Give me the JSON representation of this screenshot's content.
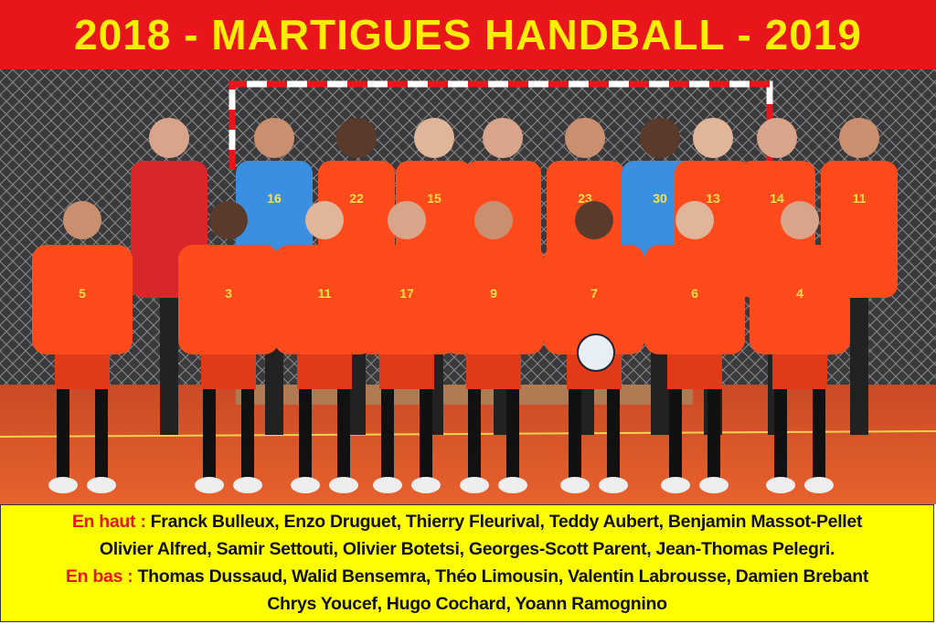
{
  "title": "2018 - MARTIGUES HANDBALL - 2019",
  "colors": {
    "title_band": "#e8151b",
    "title_text": "#ffee00",
    "caption_bg": "#ffff00",
    "jersey": "#ff4a1c",
    "goalkeeper_jersey": "#3a8fe0",
    "floor": "#e2582a"
  },
  "photo": {
    "top_row_jerseys": [
      "",
      "16",
      "22",
      "15",
      "",
      "23",
      "30",
      "13",
      "14",
      "11"
    ],
    "bottom_row_jerseys": [
      "5",
      "3",
      "11",
      "17",
      "9",
      "7",
      "6",
      "4"
    ]
  },
  "caption": {
    "top_label": "En haut :",
    "top_line1": "Franck Bulleux, Enzo Druguet, Thierry Fleurival, Teddy Aubert, Benjamin Massot-Pellet",
    "top_line2": "Olivier Alfred, Samir Settouti, Olivier Botetsi, Georges-Scott Parent, Jean-Thomas Pelegri.",
    "bottom_label": "En bas :",
    "bottom_line1": "Thomas Dussaud, Walid Bensemra, Théo Limousin, Valentin Labrousse, Damien Brebant",
    "bottom_line2": "Chrys Youcef, Hugo Cochard, Yoann Ramognino"
  }
}
